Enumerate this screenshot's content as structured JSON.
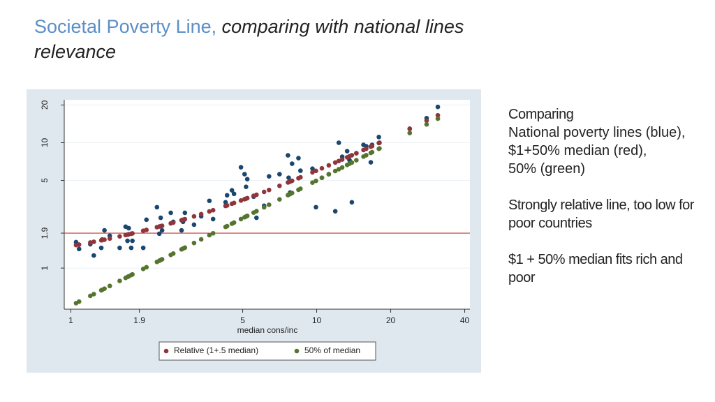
{
  "slide": {
    "title": "Societal Poverty Line,",
    "title_italic": "comparing with national lines",
    "title_italic_2": "relevance",
    "notes": [
      "Comparing",
      "National poverty lines (blue),",
      "$1+50% median (red),",
      "50% (green)",
      "Strongly relative line, too low for poor countries",
      "$1 + 50% median fits rich and poor"
    ]
  },
  "chart_data": {
    "type": "scatter",
    "xlabel": "median cons/inc",
    "xscale": "log",
    "yscale": "log",
    "xlim": [
      0.94,
      42
    ],
    "ylim": [
      0.47,
      22
    ],
    "xticks": [
      1,
      1.9,
      5,
      10,
      20,
      40
    ],
    "yticks": [
      1,
      1.9,
      5,
      10,
      20
    ],
    "grid": true,
    "legend": "bottom",
    "reference_line": {
      "value": 1.9,
      "color": "#c0392b"
    },
    "x": [
      1.05,
      1.08,
      1.2,
      1.24,
      1.33,
      1.37,
      1.34,
      1.44,
      1.58,
      1.67,
      1.72,
      1.7,
      1.78,
      1.76,
      1.97,
      2.03,
      2.24,
      2.32,
      2.35,
      2.29,
      2.55,
      2.61,
      2.86,
      2.82,
      2.91,
      3.17,
      3.39,
      3.66,
      3.79,
      4.32,
      4.26,
      4.61,
      4.52,
      4.92,
      5.09,
      5.22,
      5.16,
      5.54,
      5.69,
      6.4,
      6.11,
      7.06,
      7.64,
      7.69,
      7.8,
      7.94,
      8.43,
      8.59,
      9.61,
      9.93,
      10.5,
      11.2,
      11.9,
      12.3,
      12.7,
      13.3,
      13.6,
      13.9,
      14.5,
      15.5,
      15.9,
      16.6,
      16.8,
      17.9,
      18.0,
      23.9,
      28.0,
      31.1
    ],
    "series": [
      {
        "color": "#1a476f",
        "values": [
          1.61,
          1.42,
          1.55,
          1.26,
          1.45,
          2.0,
          1.69,
          1.81,
          1.45,
          2.14,
          2.08,
          1.65,
          1.65,
          1.45,
          1.45,
          2.43,
          3.06,
          2.52,
          2.0,
          1.88,
          2.76,
          2.34,
          2.34,
          2.0,
          2.76,
          2.22,
          2.59,
          3.44,
          2.46,
          3.81,
          3.35,
          3.91,
          4.17,
          6.37,
          5.61,
          5.12,
          4.45,
          3.71,
          2.52,
          5.39,
          3.14,
          5.61,
          7.93,
          5.26,
          4.01,
          6.8,
          7.54,
          5.98,
          6.21,
          3.06,
          5.26,
          5.61,
          2.84,
          10.0,
          7.73,
          8.57,
          7.25,
          3.35,
          8.24,
          9.62,
          9.38,
          6.98,
          9.62,
          11.1,
          10.0,
          12.9,
          15.7,
          19.3
        ]
      },
      {
        "name": "Relative (1+.5 median)",
        "color": "#90353b",
        "values": [
          1.525,
          1.54,
          1.6,
          1.62,
          1.665,
          1.685,
          1.67,
          1.72,
          1.79,
          1.835,
          1.86,
          1.85,
          1.89,
          1.88,
          1.985,
          2.015,
          2.12,
          2.16,
          2.175,
          2.145,
          2.275,
          2.305,
          2.43,
          2.41,
          2.455,
          2.585,
          2.695,
          2.83,
          2.895,
          3.16,
          3.13,
          3.305,
          3.26,
          3.46,
          3.545,
          3.61,
          3.58,
          3.77,
          3.845,
          4.2,
          4.055,
          4.53,
          4.82,
          4.845,
          4.9,
          4.97,
          5.215,
          5.295,
          5.805,
          5.965,
          6.25,
          6.6,
          6.95,
          7.15,
          7.35,
          7.65,
          7.8,
          7.95,
          8.25,
          8.75,
          8.95,
          9.3,
          9.4,
          9.95,
          10,
          12.95,
          15,
          16.55
        ]
      },
      {
        "name": "50% of median",
        "color": "#55752f",
        "values": [
          0.525,
          0.54,
          0.6,
          0.62,
          0.665,
          0.685,
          0.67,
          0.72,
          0.79,
          0.835,
          0.86,
          0.85,
          0.89,
          0.88,
          0.985,
          1.015,
          1.12,
          1.16,
          1.175,
          1.145,
          1.275,
          1.305,
          1.43,
          1.41,
          1.455,
          1.585,
          1.695,
          1.83,
          1.895,
          2.16,
          2.13,
          2.305,
          2.26,
          2.46,
          2.545,
          2.61,
          2.58,
          2.77,
          2.845,
          3.2,
          3.055,
          3.53,
          3.82,
          3.845,
          3.9,
          3.97,
          4.215,
          4.295,
          4.805,
          4.965,
          5.25,
          5.6,
          5.95,
          6.15,
          6.35,
          6.65,
          6.8,
          6.95,
          7.25,
          7.75,
          7.95,
          8.3,
          8.4,
          8.95,
          9,
          11.95,
          14,
          15.55
        ]
      }
    ]
  }
}
